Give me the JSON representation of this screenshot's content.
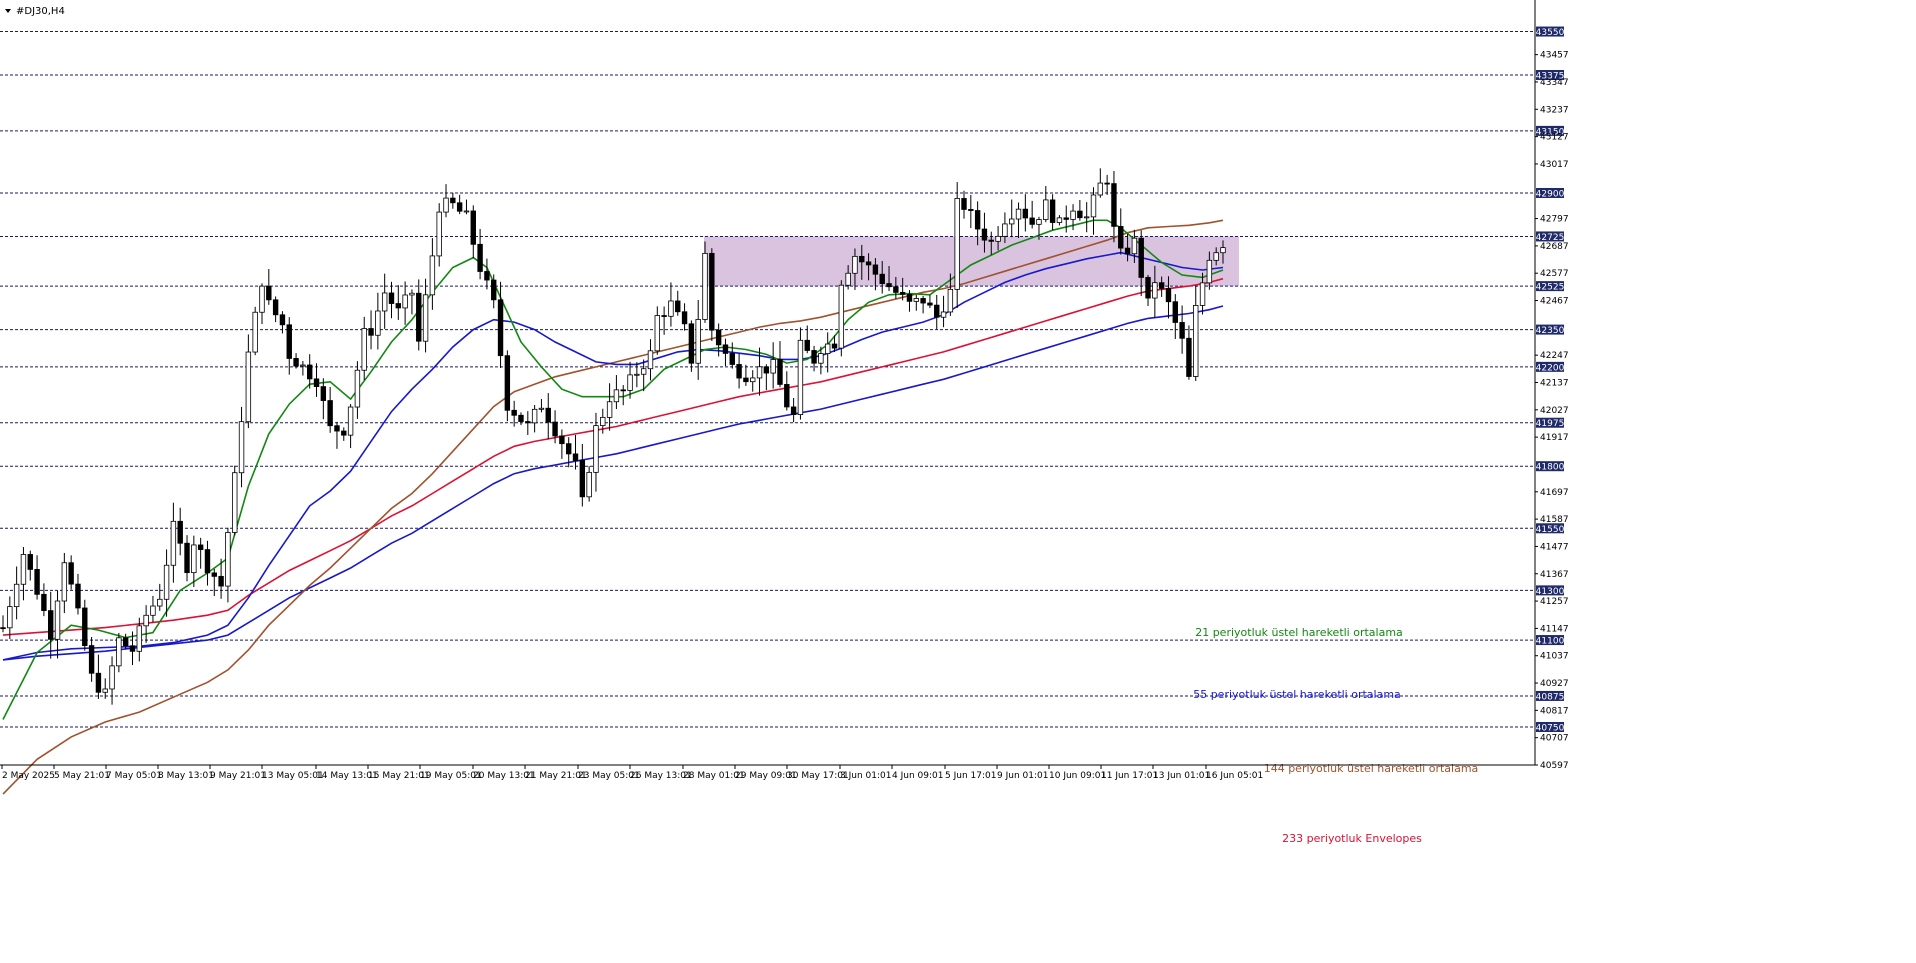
{
  "chart_title": "#DJ30,H4",
  "colors": {
    "ema21": "#118811",
    "ema55": "#1818cc",
    "ema144": "#a0522d",
    "envelope": "#dd1133",
    "zone": "#d9c3df",
    "level_line": "#1a1a66",
    "price_label_bg": "#1f2a6b"
  },
  "annotations": [
    {
      "text": "21 periyotluk üstel hareketli ortalama",
      "color": "#118811"
    },
    {
      "text": "55 periyotluk üstel hareketli ortalama",
      "color": "#1818cc"
    },
    {
      "text": "144 periyotluk üstel hareketli ortalama",
      "color": "#a0522d"
    },
    {
      "text": "233 periyotluk Envelopes",
      "color": "#dd1133"
    }
  ],
  "chart_data": {
    "type": "candlestick",
    "symbol": "#DJ30",
    "timeframe": "H4",
    "ylim": [
      40597,
      43677
    ],
    "y_ticks": [
      43457,
      43347,
      43237,
      43127,
      43017,
      42797,
      42687,
      42577,
      42467,
      42247,
      42137,
      42027,
      41917,
      41697,
      41587,
      41477,
      41367,
      41257,
      41147,
      41037,
      40927,
      40817,
      40707,
      40597
    ],
    "horizontal_levels": [
      43550,
      43375,
      43150,
      42900,
      42725,
      42525,
      42350,
      42200,
      41975,
      41800,
      41550,
      41300,
      41100,
      40875,
      40750
    ],
    "zone": {
      "from": 42525,
      "to": 42725,
      "start": "28 May 01:01",
      "end": "16 Jun 05:01"
    },
    "x_ticks": [
      "2 May 2025",
      "5 May 21:01",
      "7 May 05:01",
      "8 May 13:01",
      "9 May 21:01",
      "13 May 05:01",
      "14 May 13:01",
      "15 May 21:01",
      "19 May 05:01",
      "20 May 13:01",
      "21 May 21:01",
      "23 May 05:01",
      "26 May 13:01",
      "28 May 01:01",
      "29 May 09:01",
      "30 May 17:01",
      "3 Jun 01:01",
      "4 Jun 09:01",
      "5 Jun 17:01",
      "9 Jun 01:01",
      "10 Jun 09:01",
      "11 Jun 17:01",
      "13 Jun 01:01",
      "16 Jun 05:01"
    ],
    "close_path": [
      [
        0,
        41150
      ],
      [
        3,
        41450
      ],
      [
        5,
        41300
      ],
      [
        7,
        41130
      ],
      [
        9,
        41430
      ],
      [
        11,
        41200
      ],
      [
        13,
        40950
      ],
      [
        15,
        40880
      ],
      [
        17,
        41100
      ],
      [
        19,
        41060
      ],
      [
        21,
        41200
      ],
      [
        23,
        41280
      ],
      [
        25,
        41550
      ],
      [
        27,
        41400
      ],
      [
        28,
        41500
      ],
      [
        30,
        41400
      ],
      [
        32,
        41320
      ],
      [
        34,
        41750
      ],
      [
        36,
        42250
      ],
      [
        38,
        42550
      ],
      [
        39,
        42450
      ],
      [
        41,
        42370
      ],
      [
        42,
        42250
      ],
      [
        44,
        42200
      ],
      [
        46,
        42150
      ],
      [
        48,
        41950
      ],
      [
        50,
        41950
      ],
      [
        51,
        42050
      ],
      [
        53,
        42330
      ],
      [
        54,
        42350
      ],
      [
        56,
        42500
      ],
      [
        58,
        42420
      ],
      [
        60,
        42500
      ],
      [
        61,
        42300
      ],
      [
        63,
        42650
      ],
      [
        64,
        42850
      ],
      [
        66,
        42850
      ],
      [
        68,
        42800
      ],
      [
        69,
        42700
      ],
      [
        70,
        42600
      ],
      [
        72,
        42450
      ],
      [
        74,
        42050
      ],
      [
        76,
        41990
      ],
      [
        77,
        41960
      ],
      [
        79,
        42050
      ],
      [
        81,
        41950
      ],
      [
        82,
        41900
      ],
      [
        84,
        41800
      ],
      [
        85,
        41650
      ],
      [
        87,
        41950
      ],
      [
        88,
        42010
      ],
      [
        89,
        42080
      ],
      [
        91,
        42100
      ],
      [
        93,
        42180
      ],
      [
        95,
        42250
      ],
      [
        96,
        42400
      ],
      [
        98,
        42450
      ],
      [
        100,
        42350
      ],
      [
        101,
        42230
      ],
      [
        102,
        42400
      ],
      [
        103,
        42650
      ],
      [
        104,
        42350
      ],
      [
        105,
        42300
      ],
      [
        107,
        42200
      ],
      [
        109,
        42170
      ],
      [
        111,
        42190
      ],
      [
        113,
        42200
      ],
      [
        115,
        42050
      ],
      [
        116,
        42000
      ],
      [
        117,
        42280
      ],
      [
        119,
        42230
      ],
      [
        120,
        42280
      ],
      [
        122,
        42300
      ],
      [
        123,
        42550
      ],
      [
        125,
        42650
      ],
      [
        127,
        42600
      ],
      [
        129,
        42550
      ],
      [
        131,
        42500
      ],
      [
        133,
        42450
      ],
      [
        135,
        42470
      ],
      [
        137,
        42400
      ],
      [
        139,
        42500
      ],
      [
        140,
        42850
      ],
      [
        141,
        42850
      ],
      [
        143,
        42760
      ],
      [
        145,
        42700
      ],
      [
        147,
        42800
      ],
      [
        149,
        42850
      ],
      [
        151,
        42780
      ],
      [
        153,
        42850
      ],
      [
        155,
        42770
      ],
      [
        157,
        42850
      ],
      [
        159,
        42800
      ],
      [
        161,
        42930
      ],
      [
        162,
        42960
      ],
      [
        163,
        42750
      ],
      [
        164,
        42650
      ],
      [
        166,
        42700
      ],
      [
        168,
        42450
      ],
      [
        169,
        42550
      ],
      [
        171,
        42450
      ],
      [
        173,
        42300
      ],
      [
        174,
        42150
      ],
      [
        175,
        42430
      ],
      [
        177,
        42650
      ],
      [
        179,
        42700
      ]
    ],
    "ema21": [
      [
        0,
        40780
      ],
      [
        5,
        41050
      ],
      [
        10,
        41160
      ],
      [
        14,
        41140
      ],
      [
        18,
        41110
      ],
      [
        22,
        41130
      ],
      [
        26,
        41300
      ],
      [
        30,
        41370
      ],
      [
        33,
        41430
      ],
      [
        36,
        41720
      ],
      [
        39,
        41930
      ],
      [
        42,
        42050
      ],
      [
        45,
        42130
      ],
      [
        48,
        42140
      ],
      [
        51,
        42070
      ],
      [
        54,
        42180
      ],
      [
        57,
        42300
      ],
      [
        60,
        42390
      ],
      [
        63,
        42500
      ],
      [
        66,
        42600
      ],
      [
        69,
        42640
      ],
      [
        71,
        42600
      ],
      [
        73,
        42480
      ],
      [
        76,
        42300
      ],
      [
        79,
        42200
      ],
      [
        82,
        42110
      ],
      [
        85,
        42080
      ],
      [
        88,
        42080
      ],
      [
        91,
        42080
      ],
      [
        94,
        42110
      ],
      [
        97,
        42190
      ],
      [
        100,
        42230
      ],
      [
        103,
        42270
      ],
      [
        106,
        42280
      ],
      [
        109,
        42270
      ],
      [
        112,
        42250
      ],
      [
        115,
        42215
      ],
      [
        118,
        42230
      ],
      [
        121,
        42290
      ],
      [
        124,
        42390
      ],
      [
        127,
        42460
      ],
      [
        130,
        42490
      ],
      [
        133,
        42495
      ],
      [
        136,
        42490
      ],
      [
        139,
        42550
      ],
      [
        142,
        42610
      ],
      [
        145,
        42650
      ],
      [
        148,
        42690
      ],
      [
        151,
        42720
      ],
      [
        154,
        42750
      ],
      [
        157,
        42770
      ],
      [
        160,
        42790
      ],
      [
        162,
        42790
      ],
      [
        164,
        42760
      ],
      [
        167,
        42690
      ],
      [
        170,
        42620
      ],
      [
        173,
        42570
      ],
      [
        176,
        42560
      ],
      [
        179,
        42590
      ]
    ],
    "ema55": [
      [
        0,
        41020
      ],
      [
        5,
        41050
      ],
      [
        10,
        41065
      ],
      [
        15,
        41070
      ],
      [
        20,
        41075
      ],
      [
        25,
        41090
      ],
      [
        30,
        41120
      ],
      [
        33,
        41160
      ],
      [
        36,
        41270
      ],
      [
        39,
        41400
      ],
      [
        42,
        41520
      ],
      [
        45,
        41640
      ],
      [
        48,
        41700
      ],
      [
        51,
        41780
      ],
      [
        54,
        41900
      ],
      [
        57,
        42020
      ],
      [
        60,
        42110
      ],
      [
        63,
        42190
      ],
      [
        66,
        42280
      ],
      [
        69,
        42350
      ],
      [
        72,
        42390
      ],
      [
        75,
        42380
      ],
      [
        78,
        42350
      ],
      [
        81,
        42300
      ],
      [
        84,
        42260
      ],
      [
        87,
        42220
      ],
      [
        90,
        42210
      ],
      [
        93,
        42210
      ],
      [
        96,
        42235
      ],
      [
        99,
        42260
      ],
      [
        102,
        42270
      ],
      [
        105,
        42265
      ],
      [
        108,
        42255
      ],
      [
        111,
        42245
      ],
      [
        114,
        42230
      ],
      [
        117,
        42230
      ],
      [
        120,
        42245
      ],
      [
        123,
        42275
      ],
      [
        126,
        42310
      ],
      [
        129,
        42340
      ],
      [
        132,
        42360
      ],
      [
        135,
        42380
      ],
      [
        138,
        42410
      ],
      [
        141,
        42460
      ],
      [
        144,
        42500
      ],
      [
        147,
        42540
      ],
      [
        150,
        42570
      ],
      [
        153,
        42595
      ],
      [
        156,
        42615
      ],
      [
        159,
        42635
      ],
      [
        162,
        42650
      ],
      [
        164,
        42660
      ],
      [
        167,
        42640
      ],
      [
        170,
        42620
      ],
      [
        173,
        42600
      ],
      [
        176,
        42590
      ],
      [
        179,
        42600
      ]
    ],
    "ema144": [
      [
        0,
        40480
      ],
      [
        5,
        40620
      ],
      [
        10,
        40710
      ],
      [
        15,
        40770
      ],
      [
        20,
        40810
      ],
      [
        25,
        40870
      ],
      [
        30,
        40930
      ],
      [
        33,
        40980
      ],
      [
        36,
        41060
      ],
      [
        39,
        41160
      ],
      [
        42,
        41240
      ],
      [
        45,
        41320
      ],
      [
        48,
        41390
      ],
      [
        51,
        41470
      ],
      [
        54,
        41550
      ],
      [
        57,
        41630
      ],
      [
        60,
        41690
      ],
      [
        63,
        41770
      ],
      [
        66,
        41860
      ],
      [
        69,
        41950
      ],
      [
        72,
        42040
      ],
      [
        75,
        42100
      ],
      [
        78,
        42130
      ],
      [
        81,
        42160
      ],
      [
        84,
        42180
      ],
      [
        87,
        42200
      ],
      [
        90,
        42220
      ],
      [
        93,
        42240
      ],
      [
        96,
        42260
      ],
      [
        99,
        42280
      ],
      [
        102,
        42300
      ],
      [
        105,
        42320
      ],
      [
        108,
        42340
      ],
      [
        111,
        42360
      ],
      [
        114,
        42375
      ],
      [
        117,
        42385
      ],
      [
        120,
        42400
      ],
      [
        123,
        42420
      ],
      [
        126,
        42440
      ],
      [
        129,
        42460
      ],
      [
        132,
        42480
      ],
      [
        135,
        42500
      ],
      [
        138,
        42515
      ],
      [
        141,
        42535
      ],
      [
        144,
        42560
      ],
      [
        147,
        42585
      ],
      [
        150,
        42610
      ],
      [
        153,
        42635
      ],
      [
        156,
        42660
      ],
      [
        159,
        42685
      ],
      [
        162,
        42710
      ],
      [
        165,
        42740
      ],
      [
        168,
        42760
      ],
      [
        171,
        42765
      ],
      [
        174,
        42770
      ],
      [
        177,
        42780
      ],
      [
        179,
        42790
      ]
    ],
    "envelope": [
      [
        0,
        41120
      ],
      [
        5,
        41130
      ],
      [
        10,
        41140
      ],
      [
        15,
        41150
      ],
      [
        20,
        41165
      ],
      [
        25,
        41180
      ],
      [
        30,
        41200
      ],
      [
        33,
        41220
      ],
      [
        36,
        41280
      ],
      [
        39,
        41330
      ],
      [
        42,
        41380
      ],
      [
        45,
        41420
      ],
      [
        48,
        41460
      ],
      [
        51,
        41500
      ],
      [
        54,
        41550
      ],
      [
        57,
        41600
      ],
      [
        60,
        41640
      ],
      [
        63,
        41690
      ],
      [
        66,
        41740
      ],
      [
        69,
        41790
      ],
      [
        72,
        41840
      ],
      [
        75,
        41880
      ],
      [
        78,
        41900
      ],
      [
        81,
        41915
      ],
      [
        84,
        41930
      ],
      [
        87,
        41945
      ],
      [
        90,
        41960
      ],
      [
        93,
        41980
      ],
      [
        96,
        42000
      ],
      [
        99,
        42020
      ],
      [
        102,
        42040
      ],
      [
        105,
        42060
      ],
      [
        108,
        42080
      ],
      [
        111,
        42095
      ],
      [
        114,
        42110
      ],
      [
        117,
        42125
      ],
      [
        120,
        42140
      ],
      [
        123,
        42160
      ],
      [
        126,
        42180
      ],
      [
        129,
        42200
      ],
      [
        132,
        42220
      ],
      [
        135,
        42240
      ],
      [
        138,
        42260
      ],
      [
        141,
        42285
      ],
      [
        144,
        42310
      ],
      [
        147,
        42335
      ],
      [
        150,
        42360
      ],
      [
        153,
        42385
      ],
      [
        156,
        42410
      ],
      [
        159,
        42435
      ],
      [
        162,
        42460
      ],
      [
        165,
        42485
      ],
      [
        168,
        42505
      ],
      [
        171,
        42515
      ],
      [
        174,
        42525
      ],
      [
        177,
        42540
      ],
      [
        179,
        42555
      ]
    ],
    "ema_lower": [
      [
        0,
        41020
      ],
      [
        5,
        41035
      ],
      [
        10,
        41045
      ],
      [
        15,
        41055
      ],
      [
        20,
        41070
      ],
      [
        25,
        41085
      ],
      [
        30,
        41100
      ],
      [
        33,
        41120
      ],
      [
        36,
        41170
      ],
      [
        39,
        41220
      ],
      [
        42,
        41270
      ],
      [
        45,
        41310
      ],
      [
        48,
        41350
      ],
      [
        51,
        41390
      ],
      [
        54,
        41440
      ],
      [
        57,
        41490
      ],
      [
        60,
        41530
      ],
      [
        63,
        41580
      ],
      [
        66,
        41630
      ],
      [
        69,
        41680
      ],
      [
        72,
        41730
      ],
      [
        75,
        41770
      ],
      [
        78,
        41790
      ],
      [
        81,
        41805
      ],
      [
        84,
        41820
      ],
      [
        87,
        41835
      ],
      [
        90,
        41850
      ],
      [
        93,
        41870
      ],
      [
        96,
        41890
      ],
      [
        99,
        41910
      ],
      [
        102,
        41930
      ],
      [
        105,
        41950
      ],
      [
        108,
        41970
      ],
      [
        111,
        41985
      ],
      [
        114,
        42000
      ],
      [
        117,
        42015
      ],
      [
        120,
        42030
      ],
      [
        123,
        42050
      ],
      [
        126,
        42070
      ],
      [
        129,
        42090
      ],
      [
        132,
        42110
      ],
      [
        135,
        42130
      ],
      [
        138,
        42150
      ],
      [
        141,
        42175
      ],
      [
        144,
        42200
      ],
      [
        147,
        42225
      ],
      [
        150,
        42250
      ],
      [
        153,
        42275
      ],
      [
        156,
        42300
      ],
      [
        159,
        42325
      ],
      [
        162,
        42350
      ],
      [
        165,
        42375
      ],
      [
        168,
        42395
      ],
      [
        171,
        42405
      ],
      [
        174,
        42415
      ],
      [
        177,
        42430
      ],
      [
        179,
        42445
      ]
    ]
  }
}
